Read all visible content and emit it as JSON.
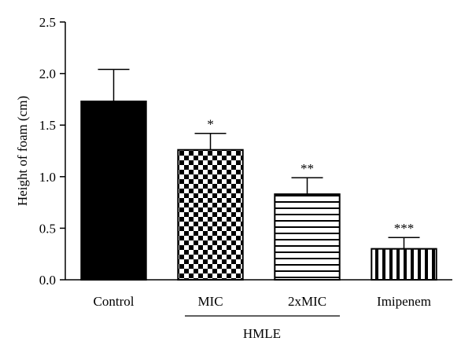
{
  "chart_data": {
    "type": "bar",
    "title": "",
    "xlabel": "",
    "ylabel": "Height of foam (cm)",
    "ylim": [
      0,
      2.5
    ],
    "yticks": [
      "0.0",
      "0.5",
      "1.0",
      "1.5",
      "2.0",
      "2.5"
    ],
    "ytick_values": [
      0,
      0.5,
      1.0,
      1.5,
      2.0,
      2.5
    ],
    "categories": [
      "Control",
      "MIC",
      "2xMIC",
      "Imipenem"
    ],
    "values": [
      1.73,
      1.26,
      0.83,
      0.3
    ],
    "error_upper": [
      2.04,
      1.42,
      0.99,
      0.41
    ],
    "significance": [
      "",
      "*",
      "**",
      "***"
    ],
    "patterns": [
      "solid",
      "checkerboard",
      "horizontal-stripes",
      "vertical-stripes"
    ],
    "group_label": "HMLE",
    "group_members": [
      "MIC",
      "2xMIC"
    ],
    "grid": false,
    "colors": {
      "bar_fill": "#000000",
      "bar_stroke": "#000000",
      "background": "#ffffff"
    }
  }
}
